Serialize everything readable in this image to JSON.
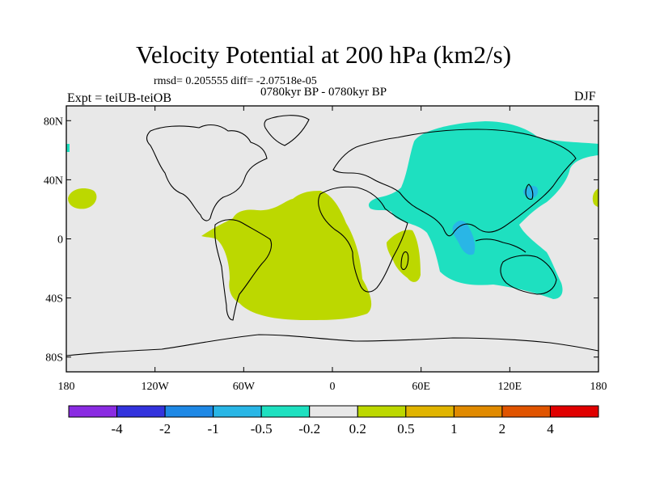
{
  "title": "Velocity Potential at 200 hPa (km2/s)",
  "stats": "rmsd= 0.205555  diff= -2.07518e-05",
  "period": "0780kyr BP - 0780kyr BP",
  "experiment": "Expt = teiUB-teiOB",
  "season": "DJF",
  "lat_ticks": [
    {
      "lat": 80,
      "label": "80N"
    },
    {
      "lat": 40,
      "label": "40N"
    },
    {
      "lat": 0,
      "label": "0"
    },
    {
      "lat": -40,
      "label": "40S"
    },
    {
      "lat": -80,
      "label": "80S"
    }
  ],
  "lon_ticks": [
    {
      "lon": -180,
      "label": "180"
    },
    {
      "lon": -120,
      "label": "120W"
    },
    {
      "lon": -60,
      "label": "60W"
    },
    {
      "lon": 0,
      "label": "0"
    },
    {
      "lon": 60,
      "label": "60E"
    },
    {
      "lon": 120,
      "label": "120E"
    },
    {
      "lon": 180,
      "label": "180"
    }
  ],
  "colorbar": {
    "colors": [
      "#8a2be2",
      "#3333dd",
      "#1e88e5",
      "#29b6e6",
      "#1ee0c0",
      "#e8e8e8",
      "#bcd800",
      "#e0b400",
      "#e08a00",
      "#e05400",
      "#e00000"
    ],
    "labels": [
      "-4",
      "-2",
      "-1",
      "-0.5",
      "-0.2",
      "0.2",
      "0.5",
      "1",
      "2",
      "4"
    ]
  },
  "colors": {
    "ocean_background": "#e8e8e8",
    "positive_fill": "#bcd800",
    "negative_fill": "#1ee0c0",
    "strong_negative_fill": "#29b6e6"
  }
}
